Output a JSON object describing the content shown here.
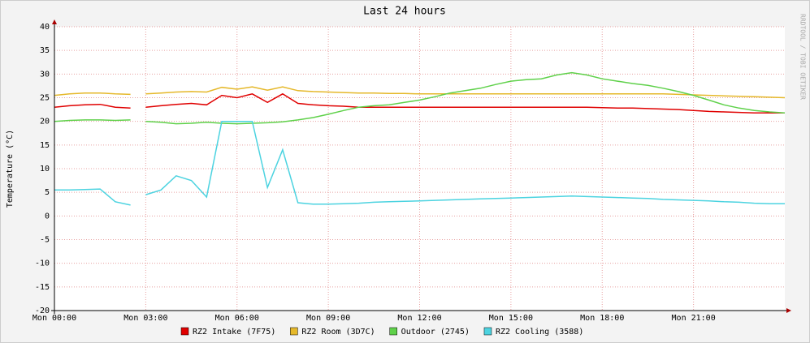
{
  "chart_data": {
    "type": "line",
    "title": "Last 24 hours",
    "y_label": "Temperature (°C)",
    "watermark": "RRDTOOL / TOBI OETIKER",
    "x": [
      0,
      0.5,
      1,
      1.5,
      2,
      2.5,
      2.8,
      3,
      3.5,
      4,
      4.5,
      5,
      5.5,
      6,
      6.5,
      7,
      7.5,
      8,
      8.5,
      9,
      9.5,
      10,
      10.5,
      11,
      11.5,
      12,
      12.5,
      13,
      13.5,
      14,
      14.5,
      15,
      15.5,
      16,
      16.5,
      17,
      17.5,
      18,
      18.5,
      19,
      19.5,
      20,
      20.5,
      21,
      21.5,
      22,
      22.5,
      23,
      23.5,
      24
    ],
    "xlim": [
      0,
      24
    ],
    "xticks": [
      {
        "value": 0,
        "label": "Mon 00:00"
      },
      {
        "value": 3,
        "label": "Mon 03:00"
      },
      {
        "value": 6,
        "label": "Mon 06:00"
      },
      {
        "value": 9,
        "label": "Mon 09:00"
      },
      {
        "value": 12,
        "label": "Mon 12:00"
      },
      {
        "value": 15,
        "label": "Mon 15:00"
      },
      {
        "value": 18,
        "label": "Mon 18:00"
      },
      {
        "value": 21,
        "label": "Mon 21:00"
      }
    ],
    "ylim": [
      -20,
      40
    ],
    "yticks": [
      40,
      35,
      30,
      25,
      20,
      15,
      10,
      5,
      0,
      -5,
      -10,
      -15,
      -20
    ],
    "grid": true,
    "series": [
      {
        "name": "RZ2 Intake (7F75)",
        "color": "#e00000",
        "values": [
          23,
          23.3,
          23.5,
          23.6,
          23,
          22.8,
          null,
          23,
          23.3,
          23.6,
          23.8,
          23.5,
          25.5,
          25,
          25.8,
          24,
          25.8,
          23.8,
          23.5,
          23.3,
          23.2,
          23,
          23,
          23,
          23,
          23,
          23,
          23,
          23,
          23,
          23,
          23,
          23,
          23,
          23,
          23,
          23,
          22.9,
          22.8,
          22.8,
          22.7,
          22.6,
          22.5,
          22.3,
          22.1,
          22,
          21.9,
          21.8,
          21.8,
          21.8
        ]
      },
      {
        "name": "RZ2 Room (3D7C)",
        "color": "#e5b82a",
        "values": [
          25.5,
          25.8,
          26,
          26,
          25.8,
          25.7,
          null,
          25.8,
          26,
          26.2,
          26.3,
          26.2,
          27.2,
          26.8,
          27.3,
          26.6,
          27.3,
          26.5,
          26.3,
          26.2,
          26.1,
          26,
          26,
          25.9,
          25.9,
          25.8,
          25.8,
          25.8,
          25.8,
          25.8,
          25.8,
          25.8,
          25.8,
          25.8,
          25.8,
          25.8,
          25.8,
          25.8,
          25.8,
          25.8,
          25.8,
          25.8,
          25.7,
          25.6,
          25.5,
          25.4,
          25.3,
          25.2,
          25.1,
          25
        ]
      },
      {
        "name": "Outdoor (2745)",
        "color": "#5fd14a",
        "values": [
          20,
          20.2,
          20.3,
          20.3,
          20.2,
          20.3,
          null,
          20,
          19.8,
          19.5,
          19.6,
          19.8,
          19.6,
          19.5,
          19.6,
          19.7,
          19.9,
          20.3,
          20.8,
          21.5,
          22.3,
          23,
          23.3,
          23.5,
          24,
          24.5,
          25.2,
          26,
          26.5,
          27,
          27.8,
          28.5,
          28.8,
          29,
          29.8,
          30.3,
          29.8,
          29,
          28.5,
          28,
          27.6,
          27,
          26.3,
          25.5,
          24.5,
          23.5,
          22.8,
          22.3,
          22,
          21.8
        ]
      },
      {
        "name": "RZ2 Cooling (3588)",
        "color": "#4cd3e0",
        "values": [
          5.5,
          5.5,
          5.6,
          5.7,
          3,
          2.3,
          null,
          4.5,
          5.5,
          8.5,
          7.5,
          4,
          20,
          20,
          20,
          6,
          14,
          2.8,
          2.5,
          2.5,
          2.6,
          2.7,
          2.9,
          3,
          3.1,
          3.2,
          3.3,
          3.4,
          3.5,
          3.6,
          3.7,
          3.8,
          3.9,
          4,
          4.1,
          4.2,
          4.1,
          4,
          3.9,
          3.8,
          3.7,
          3.5,
          3.4,
          3.3,
          3.2,
          3,
          2.9,
          2.7,
          2.6,
          2.6
        ]
      }
    ]
  }
}
